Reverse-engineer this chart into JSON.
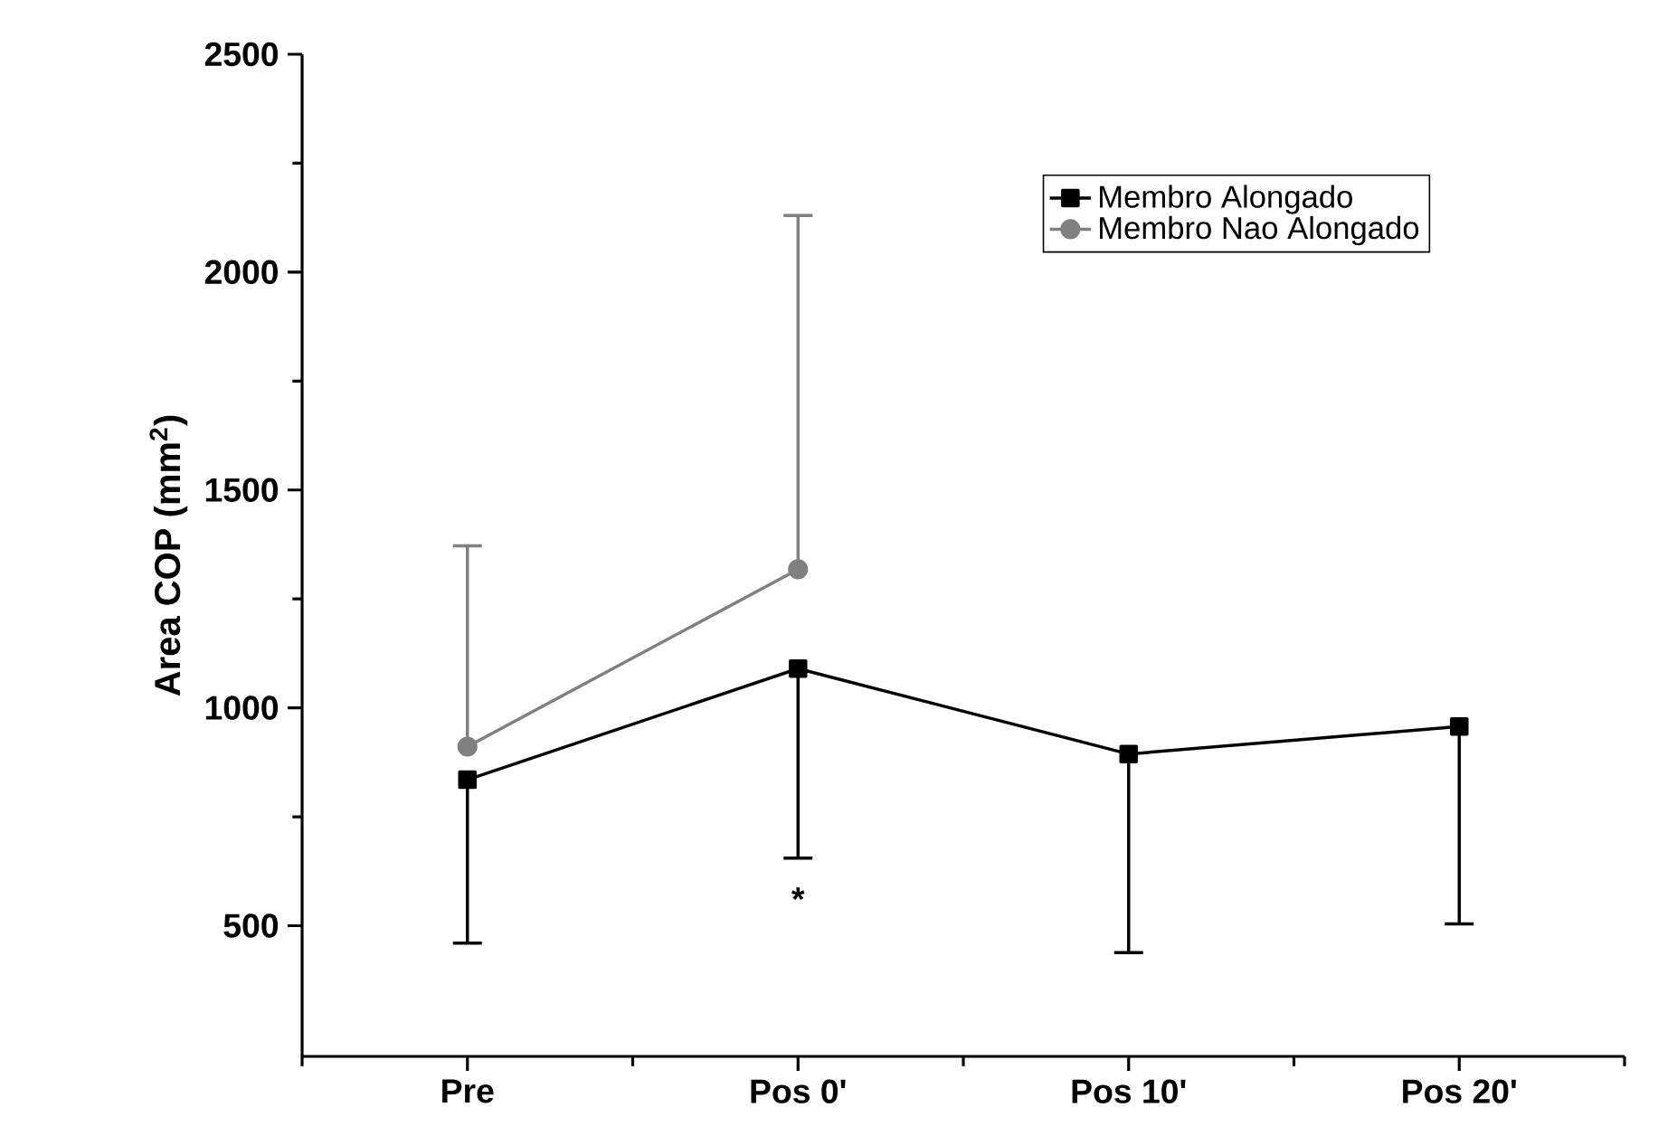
{
  "chart_data": {
    "type": "line",
    "ylabel": "Area COP (mm$^{2}$)",
    "categories": [
      "Pre",
      "Pos  0'",
      "Pos  10'",
      "Pos  20'"
    ],
    "series": [
      {
        "name": "Membro Alongado",
        "color": "#000000",
        "marker": "square",
        "values": [
          835,
          1090,
          894,
          957
        ],
        "errors": [
          [
            460,
            835
          ],
          [
            655,
            1090
          ],
          [
            438,
            894
          ],
          [
            504,
            957
          ]
        ]
      },
      {
        "name": "Membro Nao Alongado",
        "color": "#808080",
        "marker": "circle",
        "values": [
          911,
          1318,
          null,
          null
        ],
        "errors": [
          [
            911,
            1372
          ],
          [
            1318,
            2130
          ],
          null,
          null
        ]
      }
    ],
    "ylim": [
      200,
      2500
    ],
    "yticks": [
      500,
      1000,
      1500,
      2000,
      2500
    ],
    "legend": "top right",
    "grid": false,
    "annotations": [
      "*"
    ]
  }
}
